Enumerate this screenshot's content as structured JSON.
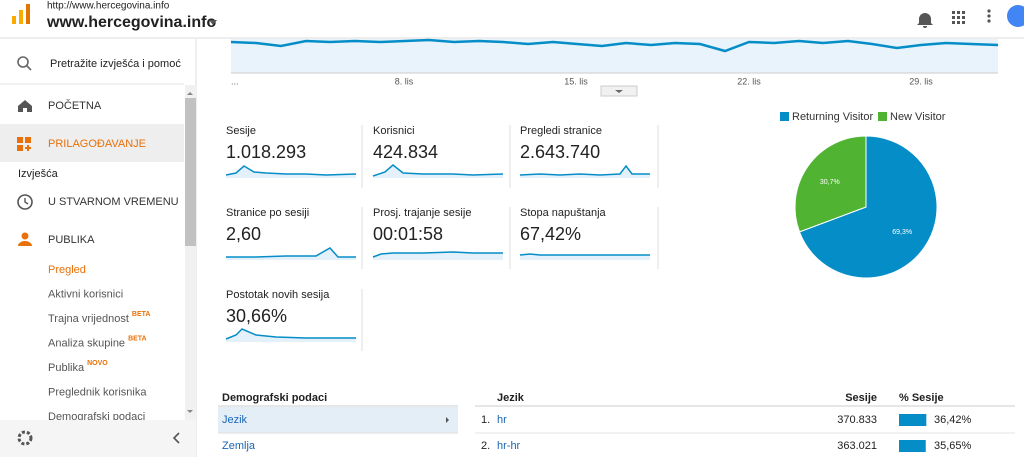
{
  "header": {
    "url": "http://www.hercegovina.info",
    "site": "www.hercegovina.info"
  },
  "sidebar": {
    "search": "Pretražite izvješća i pomoć",
    "nav": [
      "POČETNA",
      "PRILAGOĐAVANJE"
    ],
    "section": "Izvješća",
    "reports": [
      "U STVARNOM VREMENU",
      "PUBLIKA"
    ],
    "subitems": [
      {
        "label": "Pregled"
      },
      {
        "label": "Aktivni korisnici"
      },
      {
        "label": "Trajna vrijednost",
        "badge": "BETA"
      },
      {
        "label": "Analiza skupine",
        "badge": "BETA"
      },
      {
        "label": "Publika",
        "badge": "NOVO"
      },
      {
        "label": "Preglednik korisnika"
      },
      {
        "label": "Demografski podaci"
      }
    ]
  },
  "timeline": {
    "x_labels": [
      "...",
      "8. lis",
      "15. lis",
      "22. lis",
      "29. lis"
    ]
  },
  "metrics": [
    {
      "label": "Sesije",
      "value": "1.018.293"
    },
    {
      "label": "Korisnici",
      "value": "424.834"
    },
    {
      "label": "Pregledi stranice",
      "value": "2.643.740"
    },
    {
      "label": "Stranice po sesiji",
      "value": "2,60"
    },
    {
      "label": "Prosj. trajanje sesije",
      "value": "00:01:58"
    },
    {
      "label": "Stopa napuštanja",
      "value": "67,42%"
    },
    {
      "label": "Postotak novih sesija",
      "value": "30,66%"
    }
  ],
  "chart_data": {
    "type": "pie",
    "categories": [
      "Returning Visitor",
      "New Visitor"
    ],
    "values": [
      69.3,
      30.7
    ],
    "value_labels": [
      "69,3%",
      "30,7%"
    ],
    "colors": [
      "#058dc7",
      "#50b432"
    ]
  },
  "demographics": {
    "title": "Demografski podaci",
    "items": [
      "Jezik",
      "Zemlja"
    ]
  },
  "table": {
    "columns": [
      "Jezik",
      "Sesije",
      "% Sesije"
    ],
    "rows": [
      {
        "rank": "1.",
        "language": "hr",
        "sessions": "370.833",
        "share": 36.42,
        "share_label": "36,42%"
      },
      {
        "rank": "2.",
        "language": "hr-hr",
        "sessions": "363.021",
        "share": 35.65,
        "share_label": "35,65%"
      }
    ]
  }
}
